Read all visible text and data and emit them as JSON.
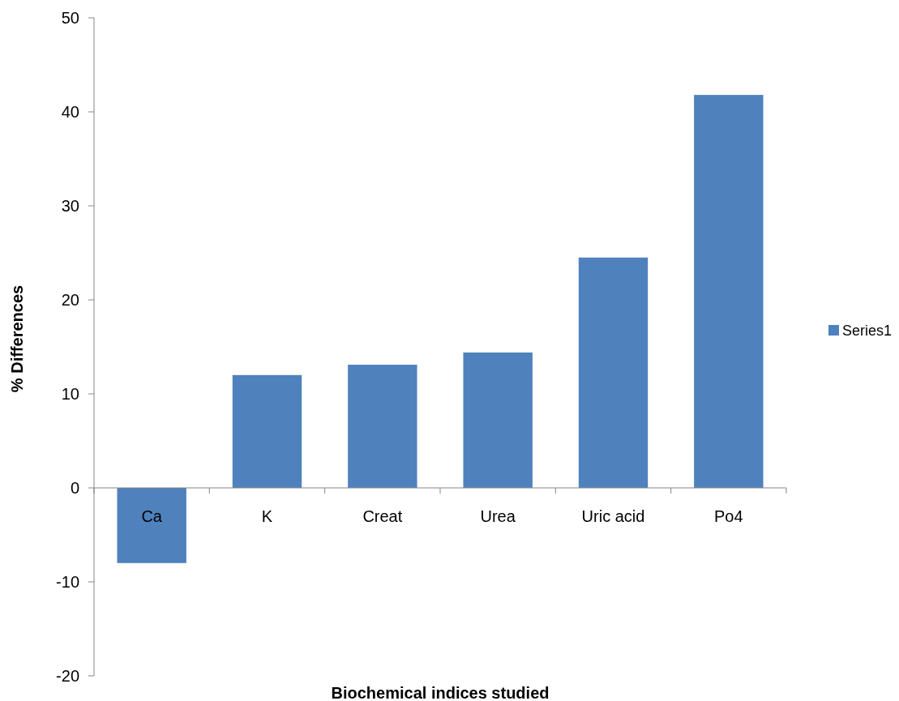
{
  "chart_data": {
    "type": "bar",
    "xlabel": "Biochemical indices studied",
    "ylabel": "% Differences",
    "categories": [
      "Ca",
      "K",
      "Creat",
      "Urea",
      "Uric acid",
      "Po4"
    ],
    "series": [
      {
        "name": "Series1",
        "color": "#4f81bd",
        "values": [
          -8.0,
          12.0,
          13.1,
          14.4,
          24.5,
          41.8
        ]
      }
    ],
    "ylim": [
      -20,
      50
    ],
    "yticks": [
      -20,
      -10,
      0,
      10,
      20,
      30,
      40,
      50
    ],
    "grid": false,
    "legend": "right"
  }
}
